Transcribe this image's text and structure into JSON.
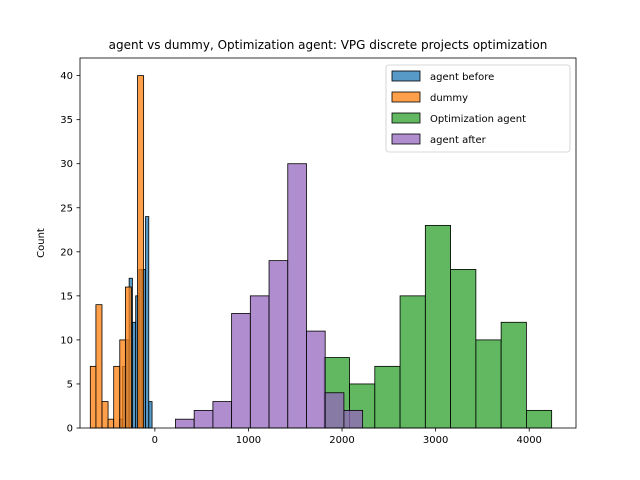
{
  "chart_data": {
    "type": "bar",
    "subtype": "histogram",
    "title": "agent vs dummy, Optimization agent: VPG discrete projects optimization",
    "xlabel": "",
    "ylabel": "Count",
    "xlim": [
      -800,
      4500
    ],
    "ylim": [
      0,
      42
    ],
    "xticks": [
      0,
      1000,
      2000,
      3000,
      4000
    ],
    "yticks": [
      0,
      5,
      10,
      15,
      20,
      25,
      30,
      35,
      40
    ],
    "grid": false,
    "legend_position": "top-right",
    "series": [
      {
        "name": "agent before",
        "color": "#1f77b4",
        "bins": [
          {
            "x0": -380,
            "x1": -345,
            "count": 1
          },
          {
            "x0": -345,
            "x1": -310,
            "count": 7
          },
          {
            "x0": -310,
            "x1": -275,
            "count": 10
          },
          {
            "x0": -275,
            "x1": -240,
            "count": 17
          },
          {
            "x0": -240,
            "x1": -205,
            "count": 12
          },
          {
            "x0": -205,
            "x1": -170,
            "count": 15
          },
          {
            "x0": -170,
            "x1": -135,
            "count": 18
          },
          {
            "x0": -135,
            "x1": -100,
            "count": 18
          },
          {
            "x0": -100,
            "x1": -65,
            "count": 24
          },
          {
            "x0": -65,
            "x1": -30,
            "count": 3
          }
        ]
      },
      {
        "name": "dummy",
        "color": "#ff7f0e",
        "bins": [
          {
            "x0": -690,
            "x1": -630,
            "count": 7
          },
          {
            "x0": -630,
            "x1": -565,
            "count": 14
          },
          {
            "x0": -565,
            "x1": -500,
            "count": 3
          },
          {
            "x0": -500,
            "x1": -440,
            "count": 1
          },
          {
            "x0": -440,
            "x1": -375,
            "count": 7
          },
          {
            "x0": -375,
            "x1": -315,
            "count": 10
          },
          {
            "x0": -315,
            "x1": -250,
            "count": 16
          },
          {
            "x0": -250,
            "x1": -185,
            "count": 0
          },
          {
            "x0": -185,
            "x1": -120,
            "count": 40
          }
        ]
      },
      {
        "name": "Optimization agent",
        "color": "#2ca02c",
        "bins": [
          {
            "x0": 1810,
            "x1": 2080,
            "count": 8
          },
          {
            "x0": 2080,
            "x1": 2350,
            "count": 5
          },
          {
            "x0": 2350,
            "x1": 2620,
            "count": 7
          },
          {
            "x0": 2620,
            "x1": 2890,
            "count": 15
          },
          {
            "x0": 2890,
            "x1": 3160,
            "count": 23
          },
          {
            "x0": 3160,
            "x1": 3430,
            "count": 18
          },
          {
            "x0": 3430,
            "x1": 3700,
            "count": 10
          },
          {
            "x0": 3700,
            "x1": 3970,
            "count": 12
          },
          {
            "x0": 3970,
            "x1": 4240,
            "count": 2
          }
        ]
      },
      {
        "name": "agent after",
        "color": "#9467bd",
        "bins": [
          {
            "x0": 220,
            "x1": 420,
            "count": 1
          },
          {
            "x0": 420,
            "x1": 620,
            "count": 2
          },
          {
            "x0": 620,
            "x1": 820,
            "count": 3
          },
          {
            "x0": 820,
            "x1": 1020,
            "count": 13
          },
          {
            "x0": 1020,
            "x1": 1220,
            "count": 15
          },
          {
            "x0": 1220,
            "x1": 1420,
            "count": 19
          },
          {
            "x0": 1420,
            "x1": 1620,
            "count": 30
          },
          {
            "x0": 1620,
            "x1": 1820,
            "count": 11
          },
          {
            "x0": 1820,
            "x1": 2020,
            "count": 4
          },
          {
            "x0": 2020,
            "x1": 2220,
            "count": 2
          }
        ]
      }
    ]
  }
}
